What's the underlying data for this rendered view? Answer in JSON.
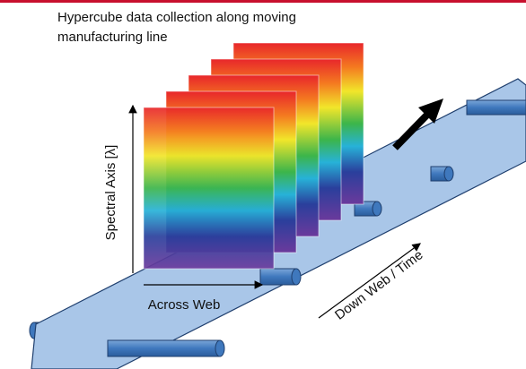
{
  "title": {
    "lines": [
      "Hypercube data collection along moving",
      "manufacturing line"
    ]
  },
  "labels": {
    "spectral_axis": "Spectral Axis [λ]",
    "across_web": "Across Web",
    "down_web": "Down Web / Time"
  }
}
